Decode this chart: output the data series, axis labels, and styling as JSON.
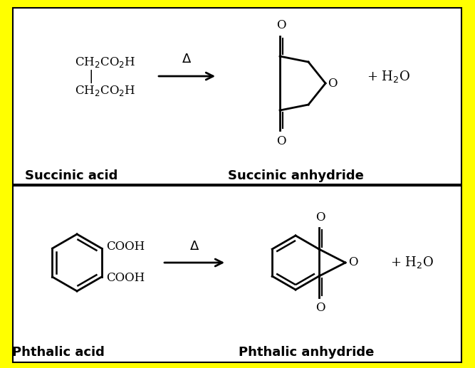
{
  "background_color": "#FFFF00",
  "panel_color": "#FFFFFF",
  "text_color": "#000000",
  "top_reaction": {
    "reactant_label": "Succinic acid",
    "product_label": "Succinic anhydride",
    "byproduct": "+ H₂O",
    "arrow_label": "Δ"
  },
  "bottom_reaction": {
    "reactant_label": "Phthalic acid",
    "product_label": "Phthalic anhydride",
    "byproduct": "+ H₂O",
    "arrow_label": "Δ"
  }
}
